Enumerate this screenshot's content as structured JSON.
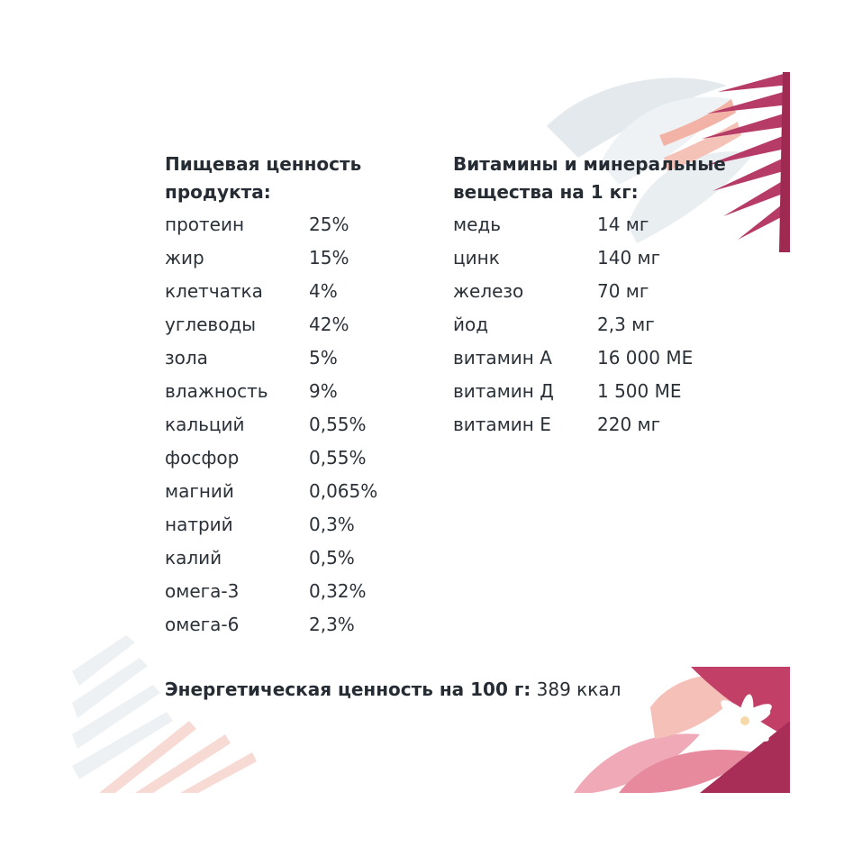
{
  "nutrition": {
    "title": "Пищевая ценность продукта:",
    "rows": [
      {
        "label": "протеин",
        "value": "25%"
      },
      {
        "label": "жир",
        "value": "15%"
      },
      {
        "label": "клетчатка",
        "value": "4%"
      },
      {
        "label": "углеводы",
        "value": "42%"
      },
      {
        "label": "зола",
        "value": "5%"
      },
      {
        "label": "влажность",
        "value": "9%"
      },
      {
        "label": "кальций",
        "value": "0,55%"
      },
      {
        "label": "фосфор",
        "value": "0,55%"
      },
      {
        "label": "магний",
        "value": "0,065%"
      },
      {
        "label": "натрий",
        "value": "0,3%"
      },
      {
        "label": "калий",
        "value": "0,5%"
      },
      {
        "label": "омега-3",
        "value": "0,32%"
      },
      {
        "label": "омега-6",
        "value": "2,3%"
      }
    ]
  },
  "vitamins": {
    "title": "Витамины и минеральные вещества на 1 кг:",
    "rows": [
      {
        "label": "медь",
        "value": "14 мг"
      },
      {
        "label": "цинк",
        "value": "140 мг"
      },
      {
        "label": "железо",
        "value": "70 мг"
      },
      {
        "label": "йод",
        "value": "2,3 мг"
      },
      {
        "label": "витамин А",
        "value": "16 000 МЕ"
      },
      {
        "label": "витамин Д",
        "value": "1 500 МЕ"
      },
      {
        "label": "витамин Е",
        "value": "220 мг"
      }
    ]
  },
  "energy": {
    "label": "Энергетическая ценность на 100 г:",
    "value": "389 ккал"
  },
  "colors": {
    "text": "#2b3138",
    "accent_magenta": "#b5335f",
    "accent_pink": "#e7a0ad",
    "leaf_grey": "#dfe6ea"
  }
}
